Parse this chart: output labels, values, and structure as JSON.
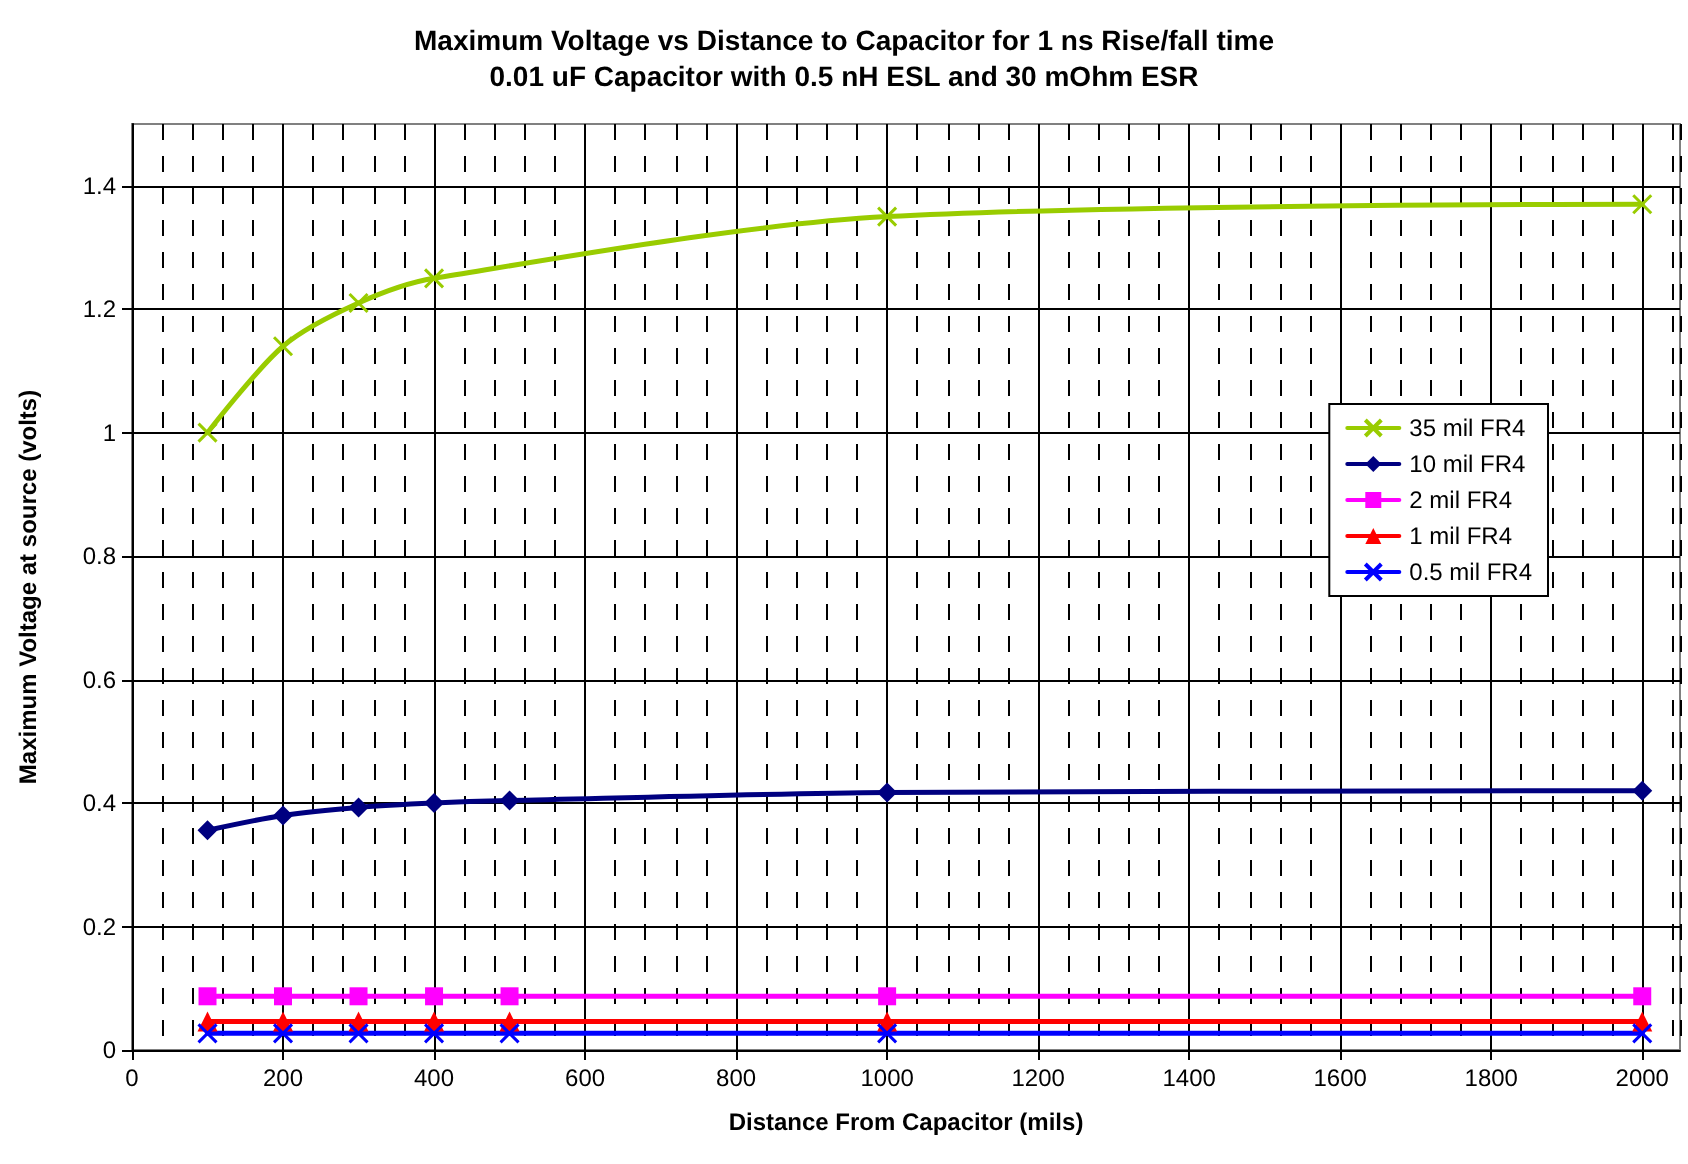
{
  "chart_data": {
    "type": "line",
    "title": "Maximum Voltage vs Distance to Capacitor for 1 ns Rise/fall time",
    "subtitle": "0.01 uF Capacitor with 0.5 nH ESL and 30 mOhm ESR",
    "xlabel": "Distance From Capacitor (mils)",
    "ylabel": "Maximum Voltage at source (volts)",
    "x": [
      100,
      200,
      300,
      400,
      500,
      1000,
      2000
    ],
    "series": [
      {
        "name": "35 mil FR4",
        "color": "#99cc00",
        "marker": "cross",
        "values": [
          1.0,
          1.14,
          1.21,
          1.25,
          null,
          1.35,
          1.37
        ],
        "x": [
          100,
          200,
          300,
          400,
          500,
          1000,
          2000
        ]
      },
      {
        "name": "10 mil FR4",
        "color": "#000080",
        "marker": "diamond",
        "values": [
          0.356,
          0.38,
          0.393,
          0.4,
          0.404,
          0.417,
          0.42
        ]
      },
      {
        "name": "2 mil FR4",
        "color": "#ff00ff",
        "marker": "square",
        "values": [
          0.087,
          0.087,
          0.087,
          0.087,
          0.087,
          0.087,
          0.087
        ]
      },
      {
        "name": "1 mil FR4",
        "color": "#ff0000",
        "marker": "triangle",
        "values": [
          0.046,
          0.046,
          0.046,
          0.046,
          0.046,
          0.046,
          0.046
        ]
      },
      {
        "name": "0.5 mil FR4",
        "color": "#0000ff",
        "marker": "cross",
        "values": [
          0.027,
          0.027,
          0.027,
          0.027,
          0.027,
          0.027,
          0.027
        ]
      }
    ],
    "xlim": [
      0,
      2050
    ],
    "xticks": [
      0,
      200,
      400,
      600,
      800,
      1000,
      1200,
      1400,
      1600,
      1800,
      2000
    ],
    "ylim": [
      0,
      1.5
    ],
    "yticks": [
      0,
      0.2,
      0.4,
      0.6,
      0.8,
      1,
      1.2,
      1.4
    ],
    "grid": true,
    "legend": "right",
    "line_style": "solid"
  }
}
